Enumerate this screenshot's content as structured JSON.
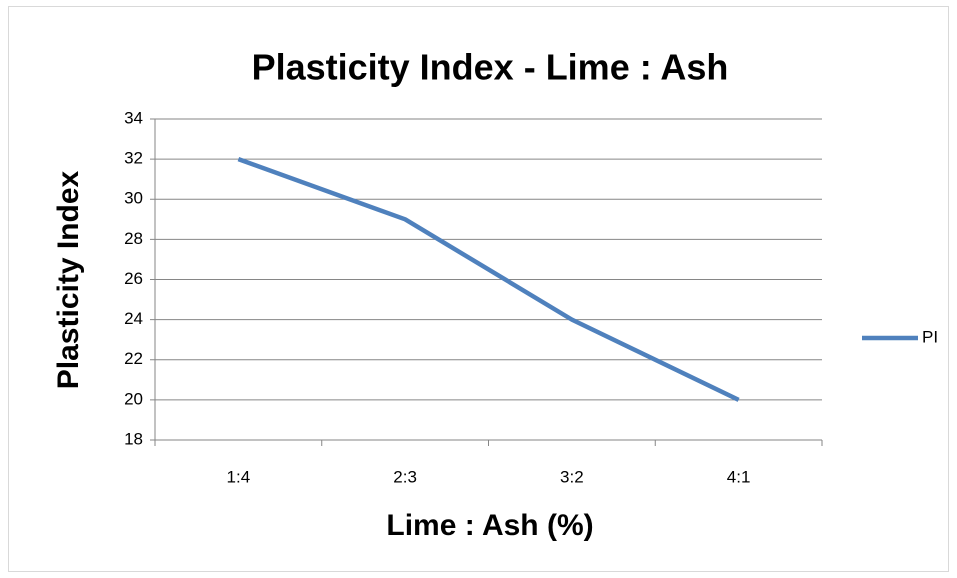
{
  "chart_data": {
    "type": "line",
    "title": "Plasticity Index - Lime : Ash",
    "x_label": "Lime : Ash (%)",
    "y_label": "Plasticity Index",
    "categories": [
      "1:4",
      "2:3",
      "3:2",
      "4:1"
    ],
    "series": [
      {
        "name": "PI",
        "color": "#4f81bd",
        "values": [
          32,
          29,
          24,
          20
        ]
      }
    ],
    "ylim": [
      18,
      34
    ],
    "yticks": [
      18,
      20,
      22,
      24,
      26,
      28,
      30,
      32,
      34
    ],
    "grid": true,
    "legend": "right"
  }
}
